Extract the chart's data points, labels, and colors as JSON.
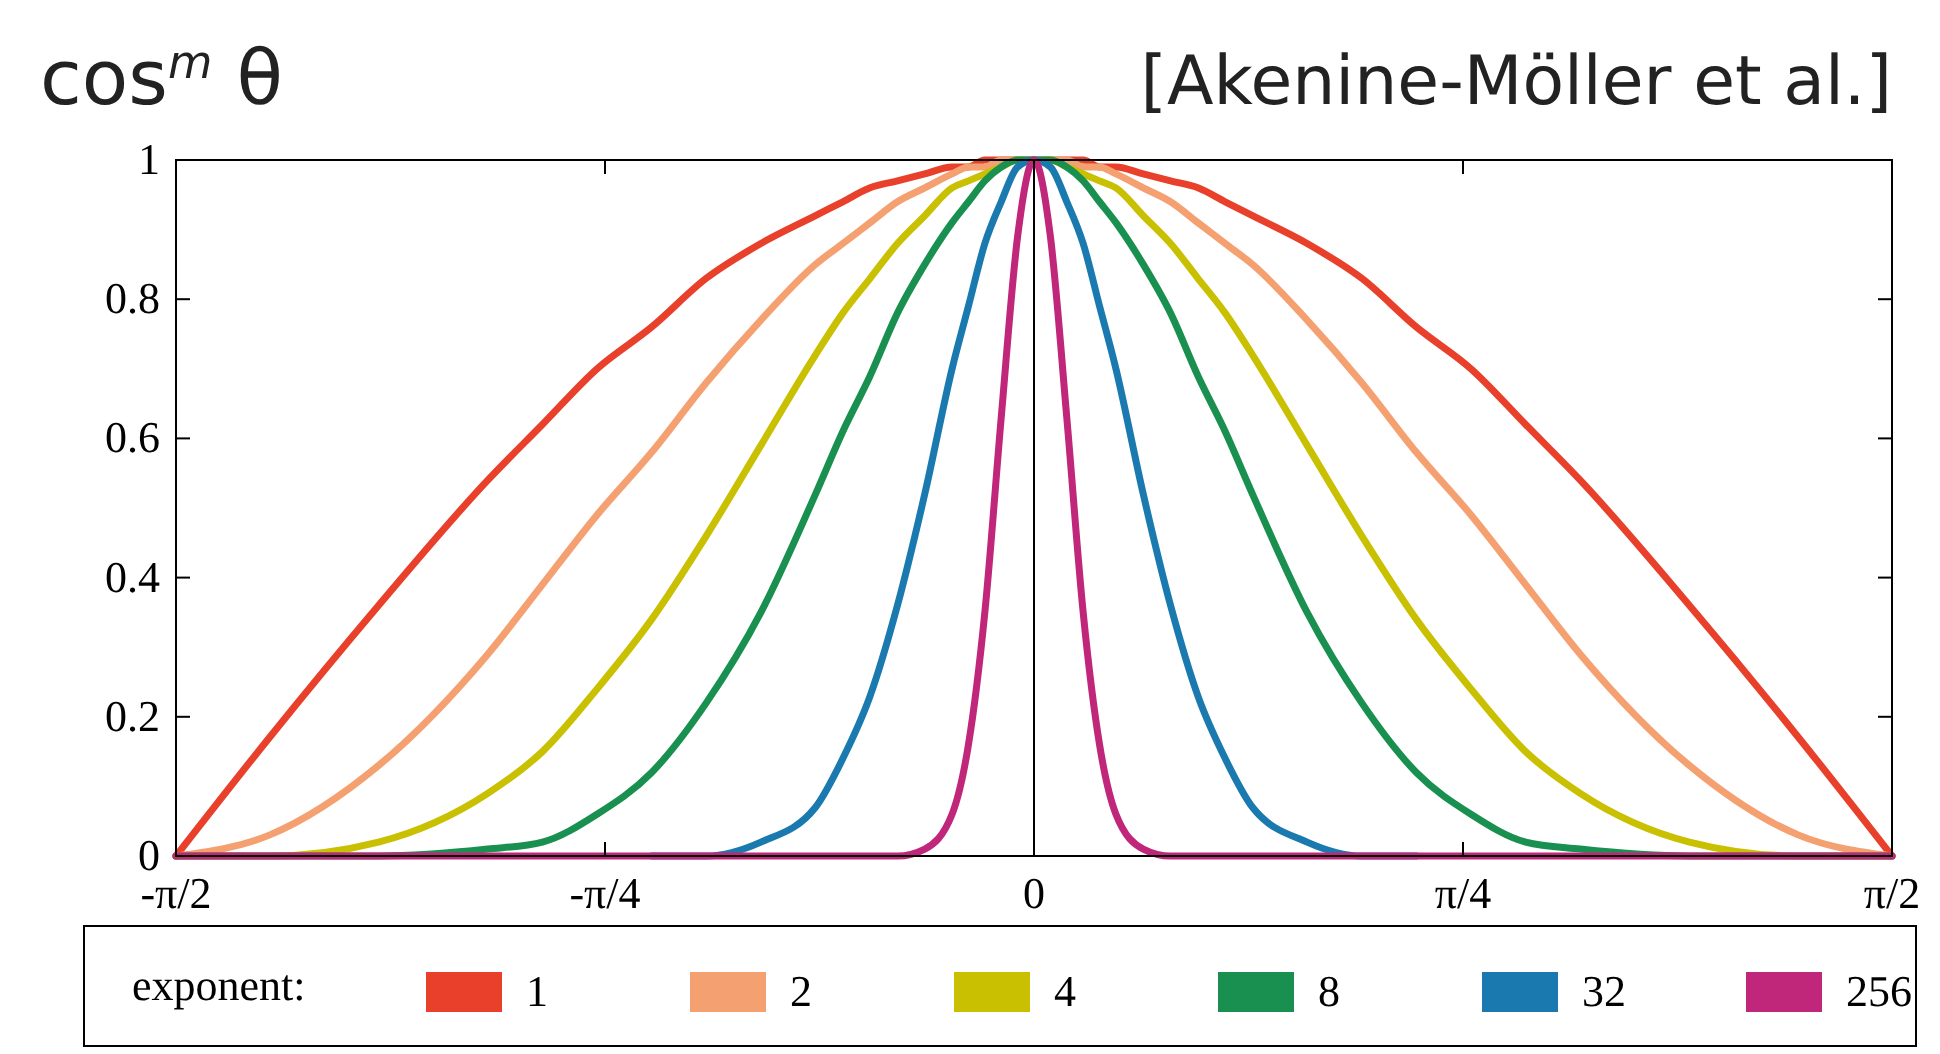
{
  "chart_data": {
    "type": "line",
    "title": "cos$^{m}$ θ",
    "annotations": [
      "[Akenine-Möller et al.]"
    ],
    "legend_title": "exponent:",
    "legend": "bottom",
    "grid": false,
    "marker": "none",
    "line_style": "solid",
    "x": [
      -1.5708,
      -1.4,
      -1.2,
      -1.0,
      -0.9,
      -0.8,
      -0.7,
      -0.6,
      -0.5,
      -0.4,
      -0.35,
      -0.3,
      -0.25,
      -0.2,
      -0.15,
      -0.12,
      -0.09,
      -0.06,
      -0.03,
      0,
      0.03,
      0.06,
      0.09,
      0.12,
      0.15,
      0.2,
      0.25,
      0.3,
      0.35,
      0.4,
      0.5,
      0.6,
      0.7,
      0.8,
      0.9,
      1.0,
      1.2,
      1.4,
      1.5708
    ],
    "xlim": [
      -1.5708,
      1.5708
    ],
    "xticks": [
      {
        "value": -1.5708,
        "label": "-π/2"
      },
      {
        "value": -0.7854,
        "label": "-π/4"
      },
      {
        "value": 0,
        "label": "0"
      },
      {
        "value": 0.7854,
        "label": "π/4"
      },
      {
        "value": 1.5708,
        "label": "π/2"
      }
    ],
    "ylim": [
      0,
      1
    ],
    "yticks": [
      0,
      0.2,
      0.4,
      0.6,
      0.8,
      1
    ],
    "ref_lines": [
      {
        "axis": "x",
        "value": 0,
        "color": "#000000"
      }
    ],
    "series": [
      {
        "name": "1",
        "color": "#e8402a",
        "values": [
          0,
          0.17,
          0.36,
          0.54,
          0.62,
          0.7,
          0.76,
          0.83,
          0.88,
          0.92,
          0.94,
          0.96,
          0.97,
          0.98,
          0.99,
          0.99,
          1,
          1,
          1,
          1,
          1,
          1,
          1,
          0.99,
          0.99,
          0.98,
          0.97,
          0.96,
          0.94,
          0.92,
          0.88,
          0.83,
          0.76,
          0.7,
          0.62,
          0.54,
          0.36,
          0.17,
          0
        ]
      },
      {
        "name": "2",
        "color": "#f5a070",
        "values": [
          0,
          0.03,
          0.13,
          0.29,
          0.39,
          0.49,
          0.58,
          0.68,
          0.77,
          0.85,
          0.88,
          0.91,
          0.94,
          0.96,
          0.98,
          0.99,
          0.99,
          1,
          1,
          1,
          1,
          1,
          0.99,
          0.99,
          0.98,
          0.96,
          0.94,
          0.91,
          0.88,
          0.85,
          0.77,
          0.68,
          0.58,
          0.49,
          0.39,
          0.29,
          0.13,
          0.03,
          0
        ]
      },
      {
        "name": "4",
        "color": "#c8c000",
        "values": [
          0,
          0,
          0.02,
          0.09,
          0.15,
          0.24,
          0.34,
          0.46,
          0.59,
          0.72,
          0.78,
          0.83,
          0.88,
          0.92,
          0.96,
          0.97,
          0.98,
          0.99,
          1,
          1,
          1,
          0.99,
          0.98,
          0.97,
          0.96,
          0.92,
          0.88,
          0.83,
          0.78,
          0.72,
          0.59,
          0.46,
          0.34,
          0.24,
          0.15,
          0.09,
          0.02,
          0,
          0
        ]
      },
      {
        "name": "8",
        "color": "#1a9050",
        "values": [
          0,
          0,
          0,
          0.01,
          0.02,
          0.06,
          0.12,
          0.22,
          0.35,
          0.52,
          0.61,
          0.69,
          0.78,
          0.85,
          0.91,
          0.94,
          0.97,
          0.99,
          1,
          1,
          1,
          0.99,
          0.97,
          0.94,
          0.91,
          0.85,
          0.78,
          0.69,
          0.61,
          0.52,
          0.35,
          0.22,
          0.12,
          0.06,
          0.02,
          0.01,
          0,
          0,
          0
        ]
      },
      {
        "name": "32",
        "color": "#1a7ab0",
        "values": [
          null,
          null,
          null,
          null,
          null,
          null,
          0,
          0,
          0.02,
          0.07,
          0.14,
          0.23,
          0.36,
          0.52,
          0.7,
          0.79,
          0.88,
          0.94,
          0.99,
          1,
          0.99,
          0.94,
          0.88,
          0.79,
          0.7,
          0.52,
          0.36,
          0.23,
          0.14,
          0.07,
          0.02,
          0,
          0,
          null,
          null,
          null,
          null,
          null,
          null
        ]
      },
      {
        "name": "256",
        "color": "#c0267a",
        "values": [
          0,
          0,
          0,
          0,
          0,
          0,
          0,
          0,
          0,
          0,
          0,
          0,
          0,
          0.01,
          0.06,
          0.16,
          0.35,
          0.63,
          0.89,
          1,
          0.89,
          0.63,
          0.35,
          0.16,
          0.06,
          0.01,
          0,
          0,
          0,
          0,
          0,
          0,
          0,
          0,
          0,
          0,
          0,
          0,
          0
        ]
      }
    ]
  }
}
